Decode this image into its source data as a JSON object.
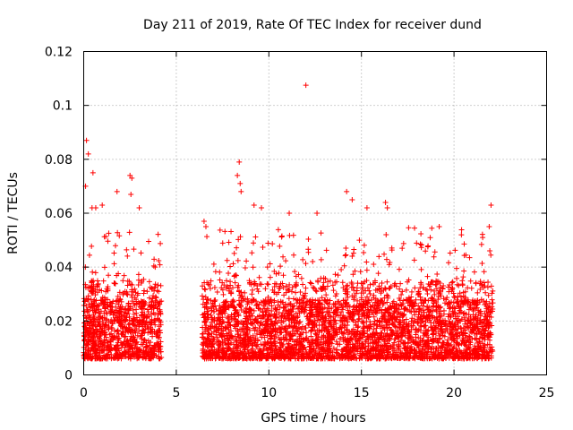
{
  "chart_data": {
    "type": "scatter",
    "title": "Day 211 of 2019, Rate Of TEC Index for receiver dund",
    "xlabel": "GPS time / hours",
    "ylabel": "ROTI / TECUs",
    "xlim": [
      0,
      25
    ],
    "ylim": [
      0,
      0.12
    ],
    "x_ticks": [
      "0",
      "5",
      "10",
      "15",
      "20",
      "25"
    ],
    "y_ticks": [
      "0",
      "0.02",
      "0.04",
      "0.06",
      "0.08",
      "0.1",
      "0.12"
    ],
    "grid": true,
    "marker": "+",
    "marker_color": "#ff0000",
    "data_gap_hours": [
      4.2,
      6.4
    ],
    "time_range_hours": [
      0,
      22.1
    ],
    "typical_range": [
      0.005,
      0.035
    ],
    "notable_points": [
      {
        "x": 0.15,
        "y": 0.087
      },
      {
        "x": 0.25,
        "y": 0.082
      },
      {
        "x": 0.1,
        "y": 0.07
      },
      {
        "x": 0.5,
        "y": 0.075
      },
      {
        "x": 0.45,
        "y": 0.062
      },
      {
        "x": 0.65,
        "y": 0.062
      },
      {
        "x": 1.8,
        "y": 0.068
      },
      {
        "x": 2.5,
        "y": 0.074
      },
      {
        "x": 2.6,
        "y": 0.073
      },
      {
        "x": 2.55,
        "y": 0.067
      },
      {
        "x": 3.0,
        "y": 0.062
      },
      {
        "x": 1.0,
        "y": 0.063
      },
      {
        "x": 8.4,
        "y": 0.079
      },
      {
        "x": 8.3,
        "y": 0.074
      },
      {
        "x": 8.45,
        "y": 0.071
      },
      {
        "x": 8.5,
        "y": 0.068
      },
      {
        "x": 9.2,
        "y": 0.063
      },
      {
        "x": 9.6,
        "y": 0.062
      },
      {
        "x": 11.1,
        "y": 0.06
      },
      {
        "x": 12.0,
        "y": 0.1075
      },
      {
        "x": 12.6,
        "y": 0.06
      },
      {
        "x": 14.2,
        "y": 0.068
      },
      {
        "x": 14.5,
        "y": 0.065
      },
      {
        "x": 15.3,
        "y": 0.062
      },
      {
        "x": 16.3,
        "y": 0.064
      },
      {
        "x": 16.4,
        "y": 0.062
      },
      {
        "x": 17.2,
        "y": 0.047
      },
      {
        "x": 19.2,
        "y": 0.055
      },
      {
        "x": 20.4,
        "y": 0.052
      },
      {
        "x": 22.0,
        "y": 0.063
      },
      {
        "x": 21.9,
        "y": 0.055
      },
      {
        "x": 6.5,
        "y": 0.057
      },
      {
        "x": 6.6,
        "y": 0.055
      }
    ]
  }
}
